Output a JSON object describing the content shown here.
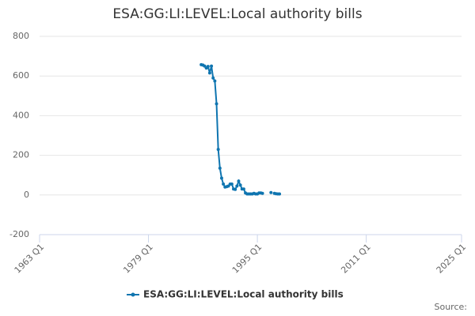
{
  "chart_data": {
    "type": "line",
    "title": "ESA:GG:LI:LEVEL:Local authority bills",
    "source": "Source:",
    "x": [
      "1986 Q4",
      "1987 Q1",
      "1987 Q2",
      "1987 Q3",
      "1987 Q4",
      "1988 Q1",
      "1988 Q2",
      "1988 Q3",
      "1988 Q4",
      "1989 Q1",
      "1989 Q2",
      "1989 Q3",
      "1989 Q4",
      "1990 Q1",
      "1990 Q2",
      "1990 Q3",
      "1990 Q4",
      "1991 Q1",
      "1991 Q2",
      "1991 Q3",
      "1991 Q4",
      "1992 Q1",
      "1992 Q2",
      "1992 Q3",
      "1992 Q4",
      "1993 Q1",
      "1993 Q2",
      "1993 Q3",
      "1993 Q4",
      "1994 Q1",
      "1994 Q2",
      "1994 Q3",
      "1994 Q4",
      "1995 Q1",
      "1995 Q2",
      "1995 Q3",
      "1995 Q4",
      "1996 Q1",
      "1996 Q2",
      "1996 Q3",
      "1996 Q4",
      "1997 Q1",
      "1997 Q2",
      "1997 Q3",
      "1997 Q4",
      "1998 Q1",
      "1998 Q2"
    ],
    "series": [
      {
        "name": "ESA:GG:LI:LEVEL:Local authority bills",
        "color": "#0f75b0",
        "values": [
          657,
          655,
          650,
          640,
          648,
          615,
          650,
          590,
          575,
          460,
          230,
          135,
          85,
          55,
          40,
          42,
          45,
          55,
          55,
          30,
          28,
          45,
          70,
          50,
          30,
          30,
          10,
          5,
          5,
          5,
          5,
          8,
          5,
          5,
          10,
          10,
          8,
          null,
          null,
          null,
          null,
          12,
          null,
          8,
          6,
          5,
          5
        ]
      }
    ],
    "xlim": [
      "1963 Q1",
      "2025 Q1"
    ],
    "xticks": [
      "1963 Q1",
      "1979 Q1",
      "1995 Q1",
      "2011 Q1",
      "2025 Q1"
    ],
    "ylim": [
      -200,
      800
    ],
    "yticks": [
      -200,
      0,
      200,
      400,
      600,
      800
    ],
    "grid": true,
    "legend": "bottom"
  }
}
